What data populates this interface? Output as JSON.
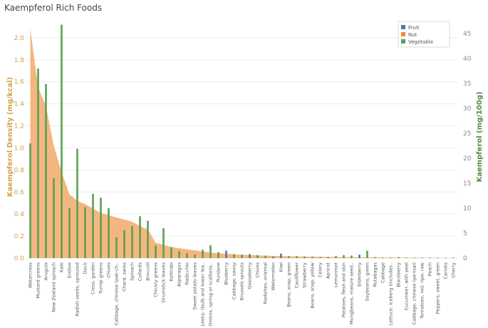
{
  "title": "Kaempferol Rich Foods",
  "colors": {
    "fruit": "#4e79a7",
    "nut": "#f28e2b",
    "vegetable": "#59a14f",
    "area": "#f4b681",
    "left_axis_text": "#d4a04a",
    "right_axis_text": "#4f8f3f",
    "grid": "#ececec"
  },
  "chart_data": {
    "type": "bar",
    "title": "Kaempferol Rich Foods",
    "left_axis": {
      "label": "Kaempferol Density (mg/kcal)",
      "range": [
        0,
        2.2
      ],
      "ticks": [
        0.0,
        0.2,
        0.4,
        0.6,
        0.8,
        1.0,
        1.2,
        1.4,
        1.6,
        1.8,
        2.0
      ]
    },
    "right_axis": {
      "label": "Kaempferol (mg/100g)",
      "range": [
        0,
        48.6
      ],
      "ticks": [
        0,
        5,
        10,
        15,
        20,
        25,
        30,
        35,
        40,
        45
      ]
    },
    "legend": {
      "placement": "top-right",
      "items": [
        "Fruit",
        "Nut",
        "Vegetable"
      ]
    },
    "grid": true,
    "categories": [
      "Watercress",
      "Mustard greens",
      "Arugula",
      "New Zealand spinach",
      "Kale",
      "Endive",
      "Radish seeds, sprouted",
      "Dock",
      "Cress, garden",
      "Turnip greens",
      "Chives",
      "Cabbage, chinese (pak-ch..",
      "Chard, swiss",
      "Spinach",
      "Collards",
      "Broccoli",
      "Chicory greens",
      "Drumstick leaves",
      "Kohlrabi",
      "Asparagus",
      "Radicchio",
      "Sweet potato leaves",
      "Leeks, (bulb and lower lea..",
      "Onions, spring or scallions..",
      "Purslane",
      "Blueberry",
      "Cabbage, savoy",
      "Brussels sprouts",
      "Gooseberry",
      "Chives",
      "Radishes, oriental",
      "Watermelon",
      "Kiwi",
      "Beans, snap, green",
      "Cauliflower",
      "Strawberry",
      "Beans, snap, yellow",
      "Celery",
      "Apricot",
      "Lemonroot",
      "Potatoes, flesh and skin",
      "Mungbeans, mature seed..",
      "Elderberry",
      "Soybeans, green",
      "Rutabagas",
      "Cabbage",
      "Lettuce, iceberg (includes..",
      "Blackberry",
      "Cucumber, with peel",
      "Cabbage, chinese (pe-tsai)",
      "Tomatoes, red, ripe, raw",
      "Peach",
      "Peppers, sweet, green",
      "Carrots",
      "Cherry"
    ],
    "series": [
      {
        "name": "Kaempferol (mg/100g)",
        "axis": "right",
        "values": [
          23,
          38,
          34.9,
          16,
          46.8,
          10.1,
          21.9,
          10.2,
          12.9,
          12.1,
          10,
          4.2,
          5.6,
          6.4,
          8.4,
          7.5,
          2.5,
          6,
          2.2,
          1.4,
          1,
          0.7,
          1.7,
          2.6,
          1.2,
          1.5,
          0.8,
          0.7,
          0.8,
          0.6,
          0.5,
          0.3,
          0.9,
          0.4,
          0.4,
          0.3,
          0.3,
          0.2,
          0.2,
          0.4,
          0.6,
          0.5,
          0.7,
          1.5,
          0.2,
          0.1,
          0.1,
          0.2,
          0.1,
          0.1,
          0.1,
          0.1,
          0.1,
          0.1,
          0.1
        ],
        "category_type": [
          "Vegetable",
          "Vegetable",
          "Vegetable",
          "Vegetable",
          "Vegetable",
          "Vegetable",
          "Vegetable",
          "Vegetable",
          "Vegetable",
          "Vegetable",
          "Vegetable",
          "Vegetable",
          "Vegetable",
          "Vegetable",
          "Vegetable",
          "Vegetable",
          "Vegetable",
          "Vegetable",
          "Vegetable",
          "Vegetable",
          "Vegetable",
          "Vegetable",
          "Vegetable",
          "Vegetable",
          "Vegetable",
          "Fruit",
          "Vegetable",
          "Vegetable",
          "Fruit",
          "Vegetable",
          "Vegetable",
          "Fruit",
          "Fruit",
          "Vegetable",
          "Vegetable",
          "Fruit",
          "Vegetable",
          "Vegetable",
          "Fruit",
          "Vegetable",
          "Vegetable",
          "Vegetable",
          "Fruit",
          "Vegetable",
          "Vegetable",
          "Vegetable",
          "Vegetable",
          "Fruit",
          "Vegetable",
          "Vegetable",
          "Vegetable",
          "Fruit",
          "Vegetable",
          "Vegetable",
          "Fruit"
        ]
      },
      {
        "name": "Kaempferol Density (mg/kcal)",
        "type": "area",
        "axis": "left",
        "values": [
          2.08,
          1.55,
          1.38,
          1.02,
          0.78,
          0.58,
          0.52,
          0.49,
          0.45,
          0.41,
          0.39,
          0.37,
          0.35,
          0.33,
          0.29,
          0.26,
          0.14,
          0.12,
          0.1,
          0.09,
          0.08,
          0.07,
          0.06,
          0.05,
          0.045,
          0.04,
          0.035,
          0.03,
          0.028,
          0.025,
          0.022,
          0.02,
          0.018,
          0.016,
          0.015,
          0.014,
          0.013,
          0.012,
          0.011,
          0.01,
          0.01,
          0.009,
          0.008,
          0.008,
          0.007,
          0.006,
          0.006,
          0.005,
          0.005,
          0.004,
          0.004,
          0.003,
          0.003,
          0.002,
          0.002
        ]
      }
    ]
  }
}
